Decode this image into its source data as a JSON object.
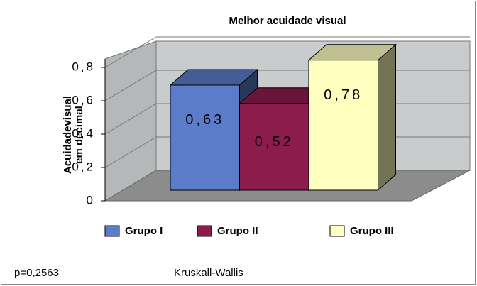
{
  "chart_data": {
    "type": "bar3d",
    "title": "Melhor acuidade visual",
    "y_label": [
      "Acuidadevisual",
      "em decimal"
    ],
    "series": [
      {
        "name": "Grupo I",
        "color": "#5b7cc8",
        "values": [
          0.63
        ],
        "value_labels": [
          "0,63"
        ]
      },
      {
        "name": "Grupo II",
        "color": "#8b1c4c",
        "values": [
          0.52
        ],
        "value_labels": [
          "0,52"
        ]
      },
      {
        "name": "Grupo III",
        "color": "#ffffc0",
        "values": [
          0.78
        ],
        "value_labels": [
          "0,78"
        ]
      }
    ],
    "ylim": [
      0,
      0.8
    ],
    "yticks": [
      0,
      {
        "value": 0.2,
        "label": "0,2"
      },
      {
        "value": 0.4,
        "label": "0,4"
      },
      {
        "value": 0.6,
        "label": "0,6"
      },
      {
        "value": 0.8,
        "label": "0,8"
      }
    ],
    "grid": true,
    "legend": "bottom",
    "annotations": [
      "p=0,2563",
      "Kruskall-Wallis"
    ]
  }
}
